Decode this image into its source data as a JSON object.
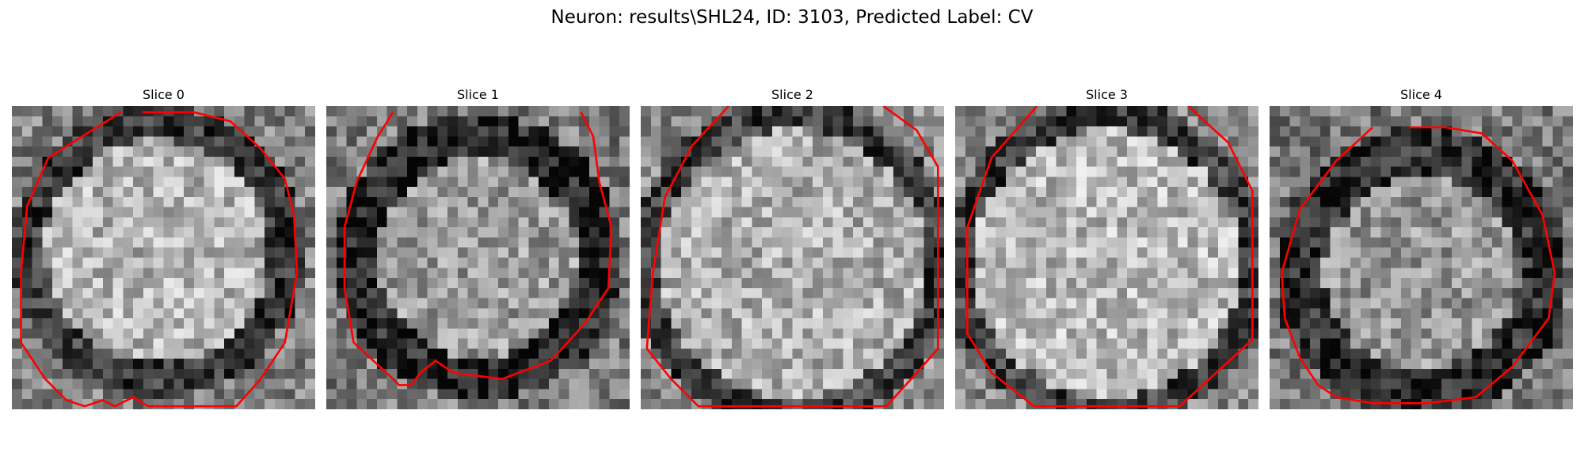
{
  "figure": {
    "title": "Neuron: results\\SHL24, ID: 3103, Predicted Label: CV"
  },
  "slices": [
    {
      "label": "Slice 0"
    },
    {
      "label": "Slice 1"
    },
    {
      "label": "Slice 2"
    },
    {
      "label": "Slice 3"
    },
    {
      "label": "Slice 4"
    }
  ],
  "colors": {
    "contour": "#ff0000",
    "colormap": "gray"
  }
}
